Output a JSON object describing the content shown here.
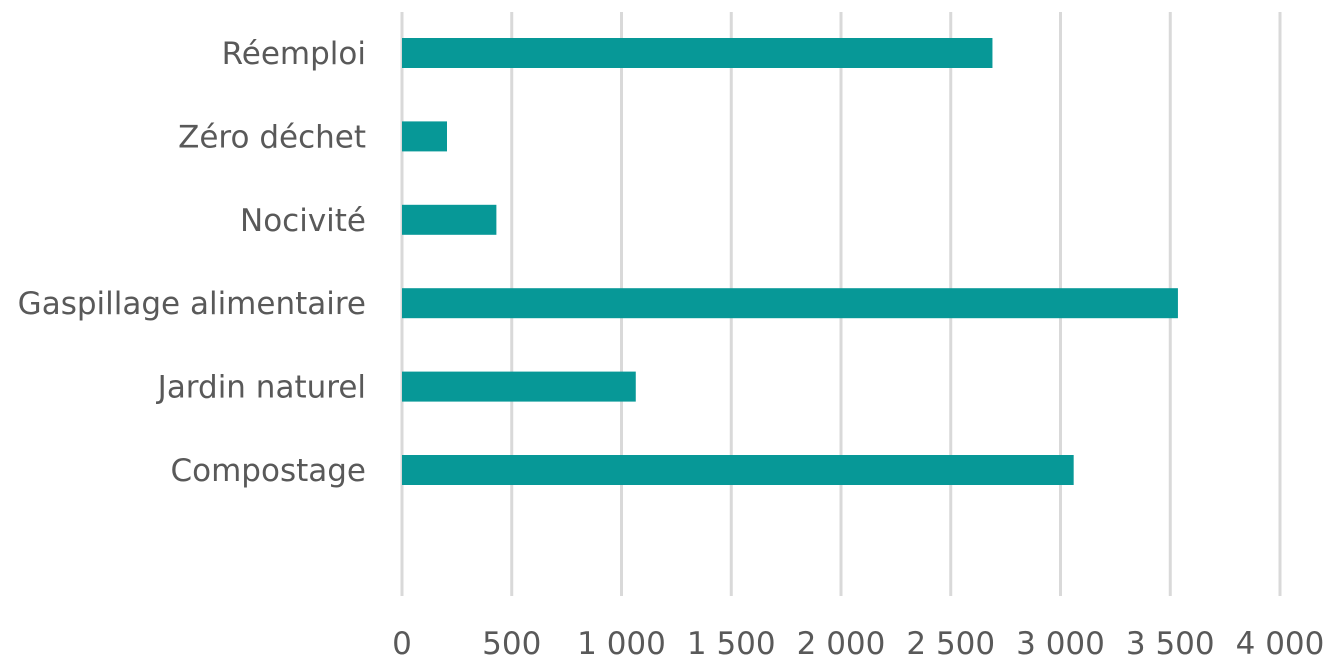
{
  "chart_data": {
    "type": "bar",
    "orientation": "horizontal",
    "title": "",
    "xlabel": "",
    "ylabel": "",
    "categories": [
      "Réemploi",
      "Zéro déchet",
      "Nocivité ",
      "Gaspillage alimentaire",
      "Jardin naturel",
      "Compostage"
    ],
    "values": [
      2690,
      205,
      430,
      3535,
      1065,
      3060
    ],
    "xlim": [
      0,
      4000
    ],
    "x_ticks": [
      0,
      500,
      1000,
      1500,
      2000,
      2500,
      3000,
      3500,
      4000
    ],
    "x_tick_labels": [
      "0",
      "500",
      "1 000",
      "1 500",
      "2 000",
      "2 500",
      "3 000",
      "3 500",
      "4 000"
    ],
    "grid": "vertical",
    "legend": "none",
    "bar_color": "#079897",
    "grid_color": "#d9d9d9",
    "text_color": "#595959"
  }
}
